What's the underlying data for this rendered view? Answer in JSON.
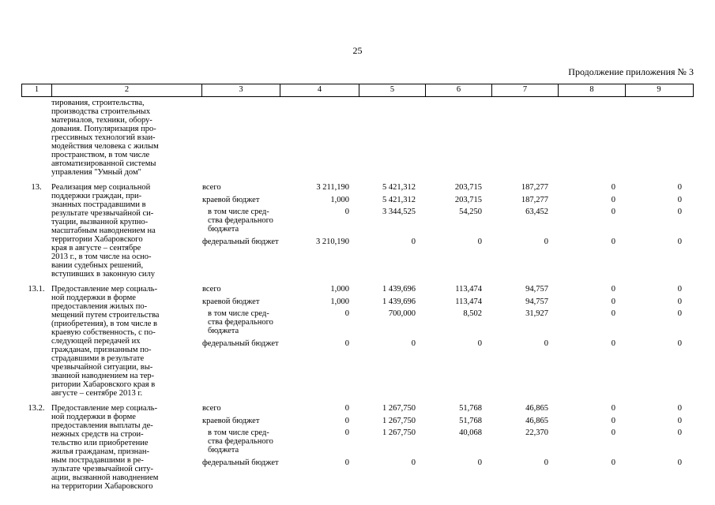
{
  "page": {
    "number": "25",
    "appendix_note": "Продолжение приложения № 3"
  },
  "table": {
    "column_numbers": [
      "1",
      "2",
      "3",
      "4",
      "5",
      "6",
      "7",
      "8",
      "9"
    ],
    "rows": [
      {
        "num": "",
        "title": "тирования, строительства,\nпроизводства строительных\nматериалов, техники, обору-\nдования. Популяризация про-\nгрессивных технологий взаи-\nмодействия человека с жилым\nпространством, в том числе\nавтоматизированной системы\nуправления \"Умный дом\"",
        "lines": []
      },
      {
        "num": "13.",
        "title": "Реализация мер социальной\nподдержки граждан, при-\nзнанных пострадавшими в\nрезультате чрезвычайной си-\nтуации, вызванной крупно-\nмасштабным наводнением на\nтерритории Хабаровского\nкрая в августе – сентябре\n2013 г., в том числе на осно-\nвании судебных решений,\nвступивших в законную силу",
        "lines": [
          {
            "label": "всего",
            "indent": false,
            "values": [
              "3 211,190",
              "5 421,312",
              "203,715",
              "187,277",
              "0",
              "0"
            ]
          },
          {
            "label": "краевой бюджет",
            "indent": false,
            "values": [
              "1,000",
              "5 421,312",
              "203,715",
              "187,277",
              "0",
              "0"
            ]
          },
          {
            "label": "в том числе сред-\nства федерального\nбюджета",
            "indent": true,
            "values": [
              "0",
              "3 344,525",
              "54,250",
              "63,452",
              "0",
              "0"
            ]
          },
          {
            "label": "федеральный бюджет",
            "indent": false,
            "values": [
              "3 210,190",
              "0",
              "0",
              "0",
              "0",
              "0"
            ]
          }
        ]
      },
      {
        "num": "13.1.",
        "title": "Предоставление мер социаль-\nной поддержки в форме\nпредоставления жилых по-\nмещений путем строительства\n(приобретения), в том числе в\nкраевую собственность, с по-\nследующей передачей их\nгражданам, признанным по-\nстрадавшими в результате\nчрезвычайной ситуации, вы-\nзванной наводнением на тер-\nритории Хабаровского края в\nавгусте – сентябре 2013 г.",
        "lines": [
          {
            "label": "всего",
            "indent": false,
            "values": [
              "1,000",
              "1 439,696",
              "113,474",
              "94,757",
              "0",
              "0"
            ]
          },
          {
            "label": "краевой бюджет",
            "indent": false,
            "values": [
              "1,000",
              "1 439,696",
              "113,474",
              "94,757",
              "0",
              "0"
            ]
          },
          {
            "label": "в том числе сред-\nства федерального\nбюджета",
            "indent": true,
            "values": [
              "0",
              "700,000",
              "8,502",
              "31,927",
              "0",
              "0"
            ]
          },
          {
            "label": "федеральный бюджет",
            "indent": false,
            "values": [
              "0",
              "0",
              "0",
              "0",
              "0",
              "0"
            ]
          }
        ]
      },
      {
        "num": "13.2.",
        "title": "Предоставление мер социаль-\nной поддержки в форме\nпредоставления выплаты де-\nнежных средств на строи-\nтельство или приобретение\nжилья гражданам, признан-\nным пострадавшими в ре-\nзультате чрезвычайной ситу-\nации, вызванной наводнением\nна территории Хабаровского",
        "lines": [
          {
            "label": "всего",
            "indent": false,
            "values": [
              "0",
              "1 267,750",
              "51,768",
              "46,865",
              "0",
              "0"
            ]
          },
          {
            "label": "краевой бюджет",
            "indent": false,
            "values": [
              "0",
              "1 267,750",
              "51,768",
              "46,865",
              "0",
              "0"
            ]
          },
          {
            "label": "в том числе сред-\nства федерального\nбюджета",
            "indent": true,
            "values": [
              "0",
              "1 267,750",
              "40,068",
              "22,370",
              "0",
              "0"
            ]
          },
          {
            "label": "федеральный бюджет",
            "indent": false,
            "values": [
              "0",
              "0",
              "0",
              "0",
              "0",
              "0"
            ]
          }
        ]
      }
    ]
  }
}
